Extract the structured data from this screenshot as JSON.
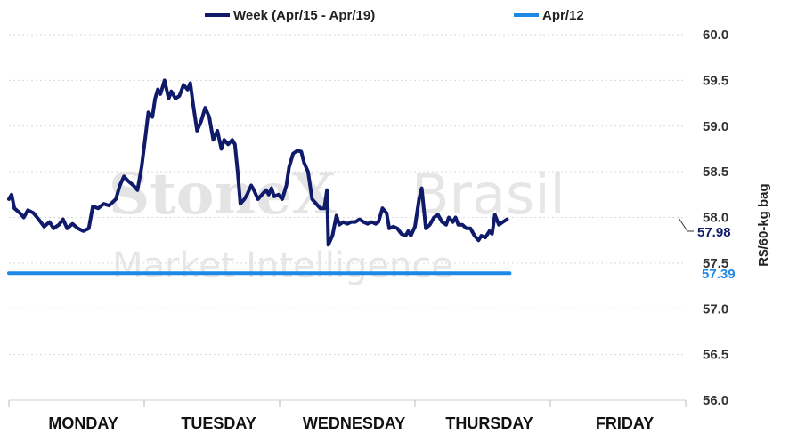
{
  "watermark": {
    "brand": "StoneX",
    "brand_suffix": "Brasil",
    "subtitle": "Market Intelligence"
  },
  "chart_data": {
    "type": "line",
    "title": "",
    "xlabel": "",
    "ylabel": "R$/60-kg bag",
    "ylim": [
      56.0,
      60.0
    ],
    "yticks": [
      "60.0",
      "59.5",
      "59.0",
      "58.5",
      "58.0",
      "57.5",
      "57.0",
      "56.5",
      "56.0"
    ],
    "grid": true,
    "legend_position": "top",
    "day_labels": [
      "MONDAY",
      "TUESDAY",
      "WEDNESDAY",
      "THURSDAY",
      "FRIDAY"
    ],
    "x_unit": "trading day (0-5)",
    "series": [
      {
        "name": "Week (Apr/15 - Apr/19)",
        "color": "#0f1a6b",
        "end_label": "57.98",
        "points": [
          [
            0.0,
            58.2
          ],
          [
            0.02,
            58.25
          ],
          [
            0.04,
            58.1
          ],
          [
            0.08,
            58.05
          ],
          [
            0.11,
            58.0
          ],
          [
            0.14,
            58.08
          ],
          [
            0.18,
            58.05
          ],
          [
            0.22,
            57.98
          ],
          [
            0.26,
            57.9
          ],
          [
            0.3,
            57.95
          ],
          [
            0.33,
            57.88
          ],
          [
            0.37,
            57.92
          ],
          [
            0.4,
            57.98
          ],
          [
            0.43,
            57.88
          ],
          [
            0.47,
            57.93
          ],
          [
            0.51,
            57.88
          ],
          [
            0.55,
            57.85
          ],
          [
            0.59,
            57.88
          ],
          [
            0.62,
            58.12
          ],
          [
            0.66,
            58.1
          ],
          [
            0.7,
            58.15
          ],
          [
            0.74,
            58.13
          ],
          [
            0.79,
            58.2
          ],
          [
            0.82,
            58.35
          ],
          [
            0.85,
            58.45
          ],
          [
            0.88,
            58.4
          ],
          [
            0.92,
            58.35
          ],
          [
            0.95,
            58.3
          ],
          [
            0.98,
            58.55
          ],
          [
            1.01,
            58.9
          ],
          [
            1.03,
            59.15
          ],
          [
            1.06,
            59.1
          ],
          [
            1.08,
            59.3
          ],
          [
            1.1,
            59.4
          ],
          [
            1.12,
            59.35
          ],
          [
            1.15,
            59.5
          ],
          [
            1.18,
            59.3
          ],
          [
            1.2,
            59.38
          ],
          [
            1.23,
            59.3
          ],
          [
            1.26,
            59.33
          ],
          [
            1.29,
            59.45
          ],
          [
            1.32,
            59.4
          ],
          [
            1.34,
            59.47
          ],
          [
            1.36,
            59.25
          ],
          [
            1.39,
            58.95
          ],
          [
            1.42,
            59.05
          ],
          [
            1.45,
            59.2
          ],
          [
            1.48,
            59.1
          ],
          [
            1.51,
            58.85
          ],
          [
            1.54,
            58.95
          ],
          [
            1.57,
            58.75
          ],
          [
            1.59,
            58.85
          ],
          [
            1.62,
            58.8
          ],
          [
            1.65,
            58.85
          ],
          [
            1.67,
            58.8
          ],
          [
            1.69,
            58.5
          ],
          [
            1.71,
            58.15
          ],
          [
            1.74,
            58.2
          ],
          [
            1.76,
            58.25
          ],
          [
            1.79,
            58.35
          ],
          [
            1.81,
            58.3
          ],
          [
            1.84,
            58.2
          ],
          [
            1.87,
            58.25
          ],
          [
            1.9,
            58.3
          ],
          [
            1.92,
            58.25
          ],
          [
            1.94,
            58.32
          ],
          [
            1.96,
            58.23
          ],
          [
            1.99,
            58.25
          ],
          [
            2.02,
            58.2
          ],
          [
            2.05,
            58.35
          ],
          [
            2.07,
            58.55
          ],
          [
            2.1,
            58.7
          ],
          [
            2.13,
            58.73
          ],
          [
            2.16,
            58.72
          ],
          [
            2.18,
            58.6
          ],
          [
            2.21,
            58.5
          ],
          [
            2.24,
            58.2
          ],
          [
            2.27,
            58.15
          ],
          [
            2.3,
            58.1
          ],
          [
            2.33,
            58.1
          ],
          [
            2.35,
            58.3
          ],
          [
            2.36,
            57.7
          ],
          [
            2.39,
            57.8
          ],
          [
            2.42,
            58.02
          ],
          [
            2.44,
            57.92
          ],
          [
            2.47,
            57.95
          ],
          [
            2.5,
            57.93
          ],
          [
            2.53,
            57.95
          ],
          [
            2.56,
            57.95
          ],
          [
            2.59,
            57.98
          ],
          [
            2.62,
            57.95
          ],
          [
            2.65,
            57.93
          ],
          [
            2.68,
            57.95
          ],
          [
            2.71,
            57.93
          ],
          [
            2.73,
            57.95
          ],
          [
            2.76,
            58.1
          ],
          [
            2.79,
            58.05
          ],
          [
            2.81,
            57.88
          ],
          [
            2.84,
            57.9
          ],
          [
            2.87,
            57.88
          ],
          [
            2.9,
            57.82
          ],
          [
            2.93,
            57.8
          ],
          [
            2.95,
            57.85
          ],
          [
            2.97,
            57.8
          ],
          [
            3.0,
            57.9
          ],
          [
            3.03,
            58.2
          ],
          [
            3.05,
            58.32
          ],
          [
            3.08,
            57.88
          ],
          [
            3.11,
            57.92
          ],
          [
            3.14,
            58.0
          ],
          [
            3.17,
            58.03
          ],
          [
            3.2,
            57.95
          ],
          [
            3.23,
            57.92
          ],
          [
            3.25,
            58.0
          ],
          [
            3.28,
            57.95
          ],
          [
            3.3,
            58.0
          ],
          [
            3.32,
            57.92
          ],
          [
            3.35,
            57.92
          ],
          [
            3.38,
            57.88
          ],
          [
            3.41,
            57.88
          ],
          [
            3.44,
            57.8
          ],
          [
            3.47,
            57.75
          ],
          [
            3.49,
            57.8
          ],
          [
            3.52,
            57.78
          ],
          [
            3.55,
            57.85
          ],
          [
            3.57,
            57.82
          ],
          [
            3.59,
            58.03
          ],
          [
            3.62,
            57.92
          ],
          [
            3.65,
            57.95
          ],
          [
            3.68,
            57.98
          ]
        ]
      },
      {
        "name": "Apr/12",
        "color": "#1e88e5",
        "end_label": "57.39",
        "points": [
          [
            0.0,
            57.39
          ],
          [
            3.7,
            57.39
          ]
        ]
      }
    ]
  }
}
